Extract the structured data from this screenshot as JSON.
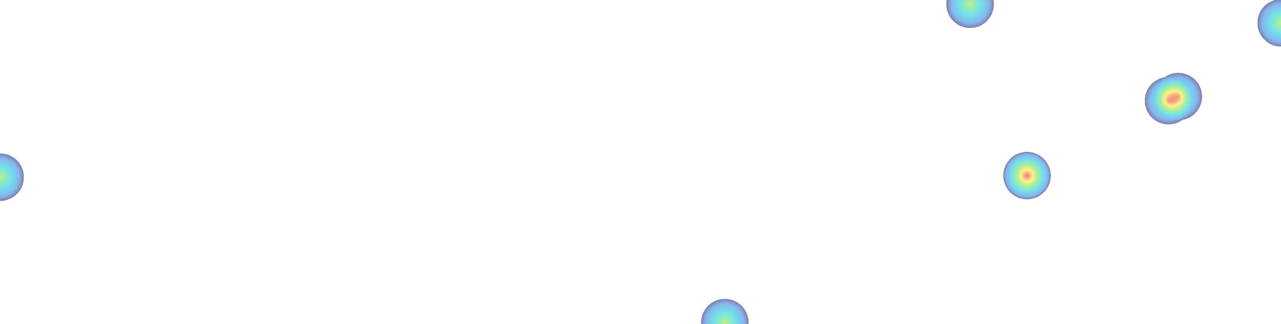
{
  "chart_data": {
    "type": "heatmap",
    "x": [
      3065,
      4048,
      3692,
      3723,
      3245,
      0,
      2290
    ],
    "y": [
      13,
      72,
      318,
      305,
      555,
      560,
      1020
    ],
    "values": [
      60,
      60,
      60,
      60,
      100,
      60,
      60
    ],
    "clim": [
      0,
      100
    ],
    "xlim": [
      0,
      4048
    ],
    "ylim": [
      1024,
      0
    ],
    "tick_labels": false,
    "grid": false
  }
}
